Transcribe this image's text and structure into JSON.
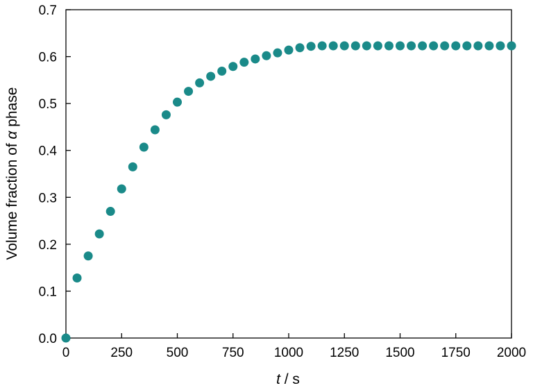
{
  "chart_data": {
    "type": "scatter",
    "title": "",
    "xlabel_var": "t",
    "xlabel_unit": " / s",
    "ylabel_prefix": "Volume fraction of ",
    "ylabel_symbol": "α",
    "ylabel_suffix": " phase",
    "xlim": [
      0,
      2000
    ],
    "ylim": [
      0.0,
      0.7
    ],
    "xticks": [
      0,
      250,
      500,
      750,
      1000,
      1250,
      1500,
      1750,
      2000
    ],
    "yticks": [
      0.0,
      0.1,
      0.2,
      0.3,
      0.4,
      0.5,
      0.6,
      0.7
    ],
    "ytick_labels": [
      "0.0",
      "0.1",
      "0.2",
      "0.3",
      "0.4",
      "0.5",
      "0.6",
      "0.7"
    ],
    "grid": false,
    "marker_color": "#1a8a89",
    "series": [
      {
        "x": [
          0,
          50,
          100,
          150,
          200,
          250,
          300,
          350,
          400,
          450,
          500,
          550,
          600,
          650,
          700,
          750,
          800,
          850,
          900,
          950,
          1000,
          1050,
          1100,
          1150,
          1200,
          1250,
          1300,
          1350,
          1400,
          1450,
          1500,
          1550,
          1600,
          1650,
          1700,
          1750,
          1800,
          1850,
          1900,
          1950,
          2000
        ],
        "y": [
          0.0,
          0.128,
          0.175,
          0.222,
          0.27,
          0.318,
          0.365,
          0.407,
          0.444,
          0.476,
          0.503,
          0.526,
          0.544,
          0.558,
          0.569,
          0.579,
          0.588,
          0.595,
          0.602,
          0.608,
          0.614,
          0.619,
          0.622,
          0.623,
          0.623,
          0.623,
          0.623,
          0.623,
          0.623,
          0.623,
          0.623,
          0.623,
          0.623,
          0.623,
          0.623,
          0.623,
          0.623,
          0.623,
          0.623,
          0.623,
          0.623
        ]
      }
    ]
  }
}
